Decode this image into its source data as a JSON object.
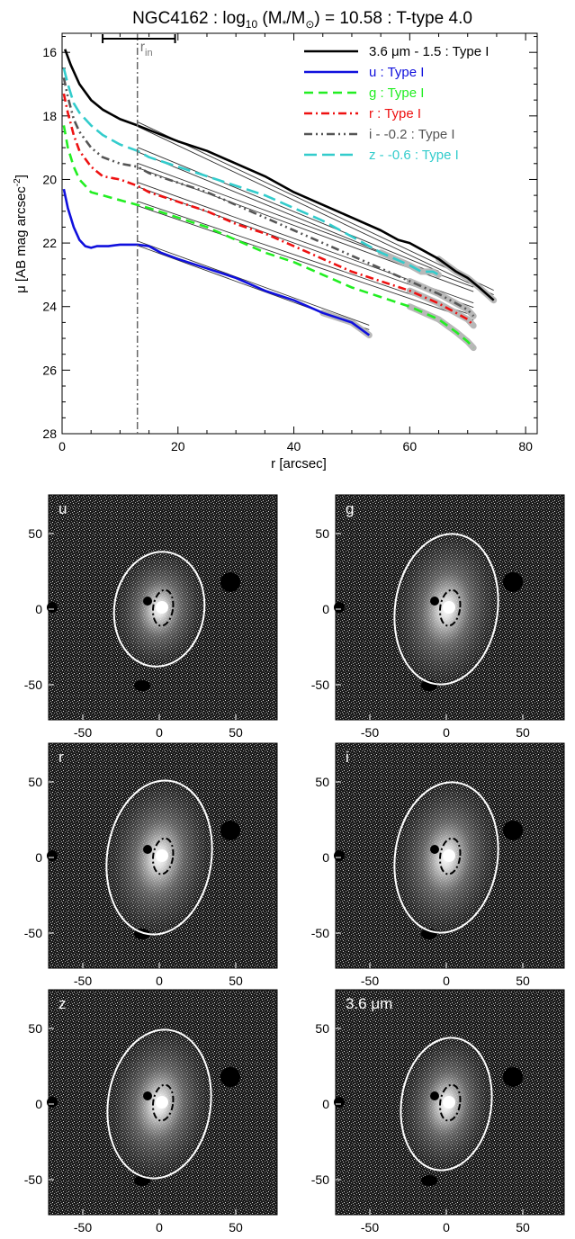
{
  "chart_data": [
    {
      "type": "line",
      "title_parts": {
        "prefix": "NGC4162 : log",
        "sub": "10",
        "mid": " (M",
        "sub2": "*",
        "mid2": "/M",
        "sub3": "⊙",
        "suffix": ") = 10.58 : T-type 4.0"
      },
      "xlabel": "r [arcsec]",
      "ylabel_parts": {
        "main": "μ [AB mag arcsec",
        "sup": "-2",
        "end": "]"
      },
      "xlim": [
        0,
        82
      ],
      "ylim": [
        28,
        15.4
      ],
      "y_reversed": true,
      "xticks": [
        0,
        20,
        40,
        60,
        80
      ],
      "yticks": [
        16,
        18,
        20,
        22,
        24,
        26,
        28
      ],
      "r_in": {
        "value": 13,
        "label": "r",
        "sub": "in",
        "bar": [
          7,
          19.5
        ]
      },
      "series": [
        {
          "name": "3.6 μm - 1.5 : Type I",
          "color": "#000000",
          "dash": "",
          "labelColor": "#000000",
          "x": [
            0.5,
            1.5,
            3,
            5,
            7,
            10,
            13,
            20,
            25,
            30,
            35,
            40,
            45,
            50,
            55,
            58,
            60,
            62,
            65,
            68,
            70,
            72,
            74.5
          ],
          "y": [
            15.9,
            16.4,
            17.0,
            17.5,
            17.8,
            18.1,
            18.3,
            18.8,
            19.1,
            19.5,
            19.9,
            20.4,
            20.8,
            21.2,
            21.6,
            21.9,
            22.0,
            22.2,
            22.5,
            22.9,
            23.1,
            23.4,
            23.8
          ],
          "fit": {
            "x": [
              13,
              74.5
            ],
            "y": [
              18.3,
              23.6
            ]
          }
        },
        {
          "name": "u : Type I",
          "color": "#1010dd",
          "dash": "",
          "labelColor": "#1010dd",
          "x": [
            0.3,
            1,
            2,
            3,
            4,
            5,
            6,
            8,
            10,
            12,
            13,
            15,
            17,
            20,
            25,
            30,
            35,
            40,
            45,
            50,
            53
          ],
          "y": [
            20.3,
            20.9,
            21.5,
            21.9,
            22.1,
            22.15,
            22.1,
            22.1,
            22.05,
            22.05,
            22.05,
            22.1,
            22.3,
            22.5,
            22.8,
            23.1,
            23.5,
            23.8,
            24.2,
            24.5,
            24.9
          ],
          "fit": {
            "x": [
              13,
              53
            ],
            "y": [
              22.05,
              24.7
            ]
          }
        },
        {
          "name": "g : Type I",
          "color": "#22ee22",
          "dash": "10 6",
          "labelColor": "#22ee22",
          "x": [
            0.3,
            1,
            2,
            3,
            4,
            5,
            7,
            9,
            11,
            13,
            15,
            20,
            25,
            30,
            35,
            40,
            45,
            50,
            55,
            60,
            65,
            68,
            70,
            71
          ],
          "y": [
            18.3,
            19.0,
            19.6,
            20.0,
            20.2,
            20.4,
            20.5,
            20.6,
            20.7,
            20.8,
            20.9,
            21.2,
            21.5,
            21.9,
            22.3,
            22.6,
            23.0,
            23.4,
            23.7,
            24.0,
            24.4,
            24.8,
            25.1,
            25.3
          ],
          "fit": {
            "x": [
              13,
              71
            ],
            "y": [
              20.8,
              24.4
            ]
          }
        },
        {
          "name": "r : Type I",
          "color": "#ee1111",
          "dash": "9 4 2 4",
          "labelColor": "#ee1111",
          "x": [
            0.3,
            1,
            2,
            3,
            5,
            7,
            10,
            13,
            15,
            20,
            25,
            30,
            35,
            40,
            45,
            50,
            55,
            60,
            65,
            68,
            70,
            71
          ],
          "y": [
            17.3,
            17.9,
            18.6,
            19.1,
            19.6,
            19.9,
            20.0,
            20.2,
            20.4,
            20.7,
            21.0,
            21.4,
            21.7,
            22.1,
            22.5,
            22.9,
            23.2,
            23.5,
            23.9,
            24.2,
            24.4,
            24.6
          ],
          "fit": {
            "x": [
              13,
              71
            ],
            "y": [
              20.2,
              24.0
            ]
          }
        },
        {
          "name": "i - -0.2 : Type I",
          "color": "#555555",
          "dash": "9 4 2 4 2 4",
          "labelColor": "#555555",
          "x": [
            0.3,
            1,
            2,
            3,
            5,
            7,
            10,
            13,
            15,
            20,
            25,
            30,
            35,
            40,
            45,
            50,
            55,
            60,
            65,
            68,
            70,
            71
          ],
          "y": [
            16.8,
            17.4,
            18.1,
            18.5,
            19.0,
            19.3,
            19.5,
            19.6,
            19.8,
            20.1,
            20.4,
            20.8,
            21.2,
            21.6,
            22.0,
            22.4,
            22.8,
            23.2,
            23.6,
            23.9,
            24.1,
            24.3
          ],
          "fit": {
            "x": [
              13,
              71
            ],
            "y": [
              19.6,
              23.5
            ]
          }
        },
        {
          "name": "z - -0.6 : Type I",
          "color": "#33cccc",
          "dash": "14 6",
          "labelColor": "#33cccc",
          "x": [
            0.3,
            1,
            2,
            3,
            5,
            7,
            10,
            13,
            15,
            20,
            25,
            30,
            35,
            40,
            45,
            50,
            55,
            60,
            62,
            64,
            65
          ],
          "y": [
            16.5,
            17.0,
            17.6,
            17.9,
            18.3,
            18.6,
            18.9,
            19.1,
            19.3,
            19.6,
            19.9,
            20.2,
            20.5,
            20.9,
            21.3,
            21.8,
            22.3,
            22.7,
            22.9,
            22.9,
            23.0
          ],
          "fit": {
            "x": [
              13,
              65
            ],
            "y": [
              19.1,
              23.0
            ]
          }
        }
      ]
    },
    {
      "type": "image",
      "panels": [
        {
          "label": "u"
        },
        {
          "label": "g"
        },
        {
          "label": "r"
        },
        {
          "label": "i"
        },
        {
          "label": "z"
        },
        {
          "label_main": "3.6 ",
          "label_unit": "μm"
        }
      ],
      "xticks": [
        -50,
        0,
        50
      ],
      "yticks": [
        50,
        0,
        -50
      ]
    }
  ]
}
